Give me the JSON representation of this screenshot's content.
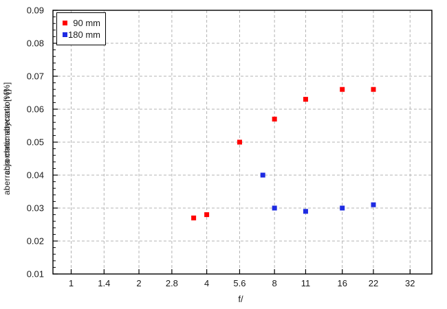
{
  "figure": {
    "background": "#ffffff",
    "text_color": "#1a1a1a",
    "grid_color": "#b3b3b3",
    "border_color": "#000000"
  },
  "chart_data": {
    "type": "scatter",
    "title": "",
    "xlabel": "f/",
    "ylabel": "aberracja chromatyczna [%]",
    "ylabel_overlay": "chromatic aberration [%]",
    "x_scale": "log",
    "xlim": [
      0.83,
      40
    ],
    "ylim": [
      0.01,
      0.09
    ],
    "x_ticks": [
      1,
      1.4,
      2,
      2.8,
      4,
      5.6,
      8,
      11,
      16,
      22,
      32
    ],
    "x_tick_labels": [
      "1",
      "1.4",
      "2",
      "2.8",
      "4",
      "5.6",
      "8",
      "11",
      "16",
      "22",
      "32"
    ],
    "y_ticks": [
      0.01,
      0.02,
      0.03,
      0.04,
      0.05,
      0.06,
      0.07,
      0.08,
      0.09
    ],
    "y_minor_step": 0.002,
    "grid": true,
    "legend_position": "top-left",
    "series": [
      {
        "name": "90 mm",
        "color": "#ff0000",
        "marker": "square",
        "points": [
          [
            3.5,
            0.027
          ],
          [
            4,
            0.028
          ],
          [
            5.6,
            0.05
          ],
          [
            8,
            0.057
          ],
          [
            11,
            0.063
          ],
          [
            16,
            0.066
          ],
          [
            22,
            0.066
          ]
        ]
      },
      {
        "name": "180 mm",
        "color": "#1e2be2",
        "marker": "square",
        "points": [
          [
            7.1,
            0.04
          ],
          [
            8,
            0.03
          ],
          [
            11,
            0.029
          ],
          [
            16,
            0.03
          ],
          [
            22,
            0.031
          ]
        ]
      }
    ]
  }
}
